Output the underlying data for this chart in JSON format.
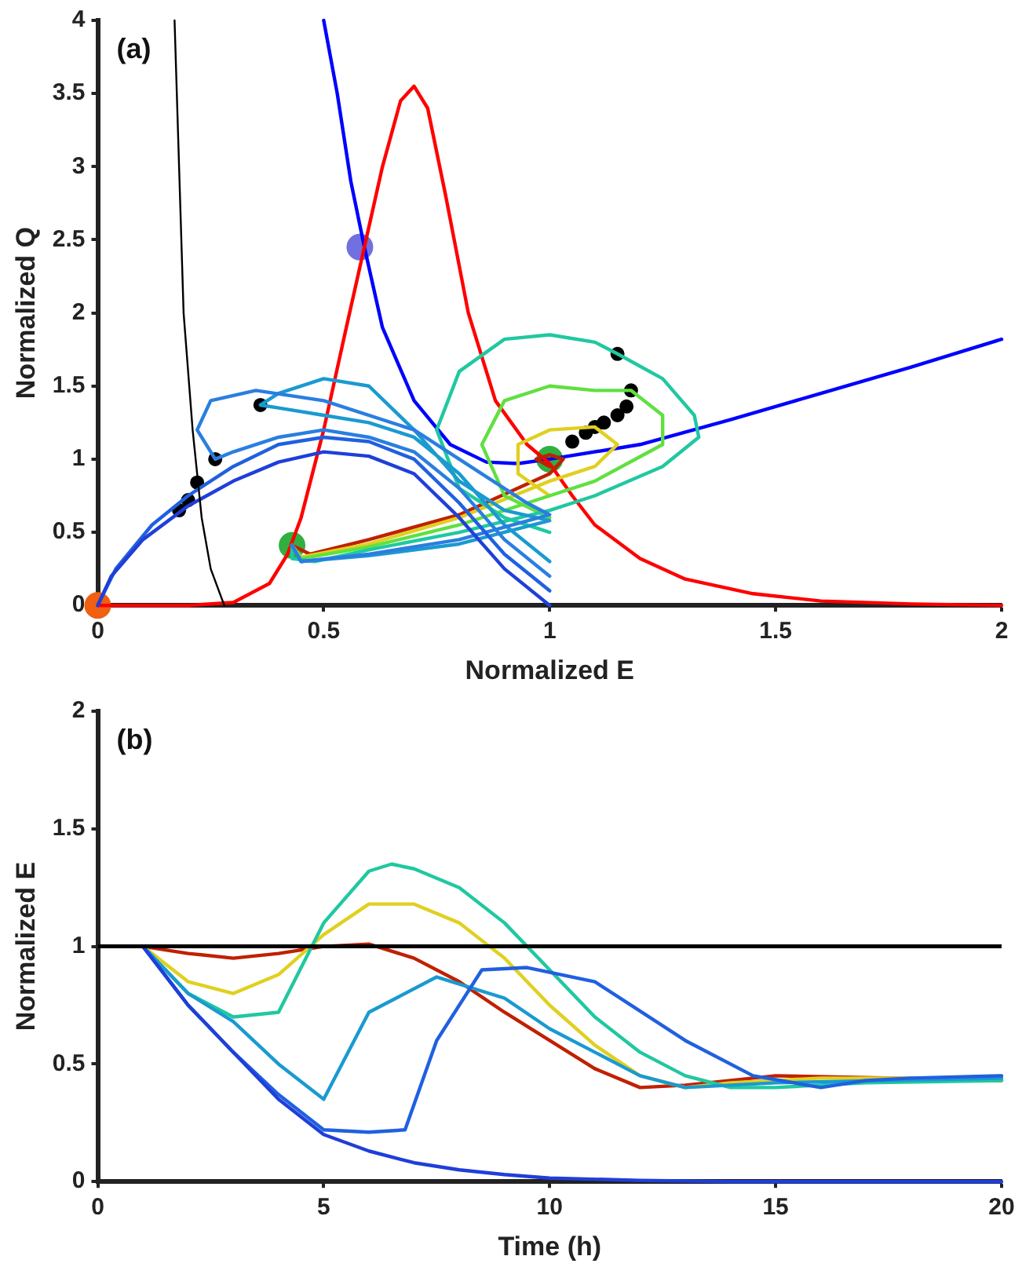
{
  "chart_data": [
    {
      "type": "line",
      "xlabel": "Normalized E",
      "ylabel": "Normalized Q",
      "annotations": [
        "(a)"
      ],
      "xlim": [
        0,
        2
      ],
      "xticks": [
        0,
        0.5,
        1,
        1.5,
        2
      ],
      "ylim": [
        0,
        4
      ],
      "yticks": [
        0,
        0.5,
        1,
        1.5,
        2,
        2.5,
        3,
        3.5,
        4
      ],
      "grid": false,
      "legend": false,
      "marker": "none",
      "line_style": "solid",
      "series": [
        {
          "color": "#000000",
          "x": [
            0.17,
            0.18,
            0.19,
            0.21,
            0.23,
            0.25,
            0.28
          ],
          "values": [
            4,
            3,
            2,
            1.2,
            0.6,
            0.25,
            0
          ]
        },
        {
          "color": "#1f3fd8",
          "x": [
            1,
            0.9,
            0.8,
            0.7,
            0.6,
            0.5,
            0.4,
            0.3,
            0.2,
            0.1,
            0.03,
            0
          ],
          "values": [
            0,
            0.25,
            0.6,
            0.9,
            1.02,
            1.05,
            0.98,
            0.85,
            0.68,
            0.45,
            0.2,
            0
          ]
        },
        {
          "color": "#2060e0",
          "x": [
            1,
            0.9,
            0.8,
            0.7,
            0.6,
            0.5,
            0.4,
            0.3,
            0.2,
            0.12,
            0.04,
            0
          ],
          "values": [
            0.1,
            0.35,
            0.7,
            1,
            1.12,
            1.15,
            1.1,
            0.95,
            0.75,
            0.55,
            0.25,
            0
          ]
        },
        {
          "color": "#2a7ee0",
          "x": [
            1,
            0.9,
            0.8,
            0.7,
            0.6,
            0.5,
            0.4,
            0.3,
            0.26,
            0.22,
            0.25,
            0.35,
            0.5,
            0.7,
            0.85,
            0.95,
            1,
            0.8,
            0.6,
            0.45,
            0.43
          ],
          "values": [
            0.2,
            0.45,
            0.8,
            1.05,
            1.15,
            1.2,
            1.15,
            1.05,
            1,
            1.2,
            1.4,
            1.47,
            1.4,
            1.2,
            0.9,
            0.7,
            0.62,
            0.45,
            0.35,
            0.3,
            0.41
          ]
        },
        {
          "color": "#1a9ad0",
          "x": [
            1,
            0.9,
            0.8,
            0.7,
            0.6,
            0.5,
            0.4,
            0.36,
            0.4,
            0.5,
            0.6,
            0.7,
            0.8,
            0.9,
            1,
            0.8,
            0.6,
            0.45,
            0.43
          ],
          "values": [
            0.3,
            0.55,
            0.9,
            1.15,
            1.25,
            1.3,
            1.35,
            1.37,
            1.45,
            1.55,
            1.5,
            1.2,
            0.85,
            0.65,
            0.58,
            0.42,
            0.34,
            0.3,
            0.41
          ]
        },
        {
          "color": "#20c8a0",
          "x": [
            1,
            0.9,
            0.8,
            0.75,
            0.8,
            0.9,
            1,
            1.1,
            1.15,
            1.25,
            1.32,
            1.33,
            1.25,
            1.1,
            1,
            0.8,
            0.6,
            0.48,
            0.43,
            0.43
          ],
          "values": [
            0.5,
            0.6,
            0.8,
            1.2,
            1.6,
            1.82,
            1.85,
            1.8,
            1.72,
            1.55,
            1.3,
            1.15,
            0.95,
            0.75,
            0.65,
            0.5,
            0.38,
            0.3,
            0.32,
            0.41
          ]
        },
        {
          "color": "#60e040",
          "x": [
            1,
            0.9,
            0.85,
            0.9,
            1,
            1.1,
            1.18,
            1.25,
            1.25,
            1.1,
            1,
            0.8,
            0.6,
            0.45,
            0.43
          ],
          "values": [
            0.6,
            0.75,
            1.1,
            1.4,
            1.5,
            1.47,
            1.47,
            1.3,
            1.1,
            0.85,
            0.75,
            0.55,
            0.4,
            0.32,
            0.41
          ]
        },
        {
          "color": "#e0d020",
          "x": [
            1,
            0.93,
            0.93,
            1,
            1.1,
            1.15,
            1.1,
            1,
            0.8,
            0.6,
            0.45,
            0.43
          ],
          "values": [
            0.75,
            0.9,
            1.1,
            1.2,
            1.22,
            1.1,
            0.95,
            0.85,
            0.6,
            0.42,
            0.33,
            0.41
          ]
        },
        {
          "color": "#c02000",
          "x": [
            1,
            0.97,
            1,
            1.03,
            1,
            0.8,
            0.6,
            0.47,
            0.43
          ],
          "values": [
            0.95,
            1,
            1.03,
            1,
            0.9,
            0.62,
            0.45,
            0.35,
            0.41
          ]
        },
        {
          "color": "#ff0000",
          "x": [
            0,
            0.2,
            0.3,
            0.38,
            0.42,
            0.45,
            0.5,
            0.55,
            0.59,
            0.63,
            0.67,
            0.7,
            0.73,
            0.77,
            0.82,
            0.88,
            0.95,
            1,
            1.05,
            1.1,
            1.2,
            1.3,
            1.45,
            1.6,
            1.8,
            2
          ],
          "values": [
            0,
            0,
            0.02,
            0.15,
            0.35,
            0.6,
            1.2,
            1.9,
            2.45,
            3,
            3.45,
            3.55,
            3.4,
            2.8,
            2,
            1.4,
            1.1,
            0.97,
            0.75,
            0.55,
            0.32,
            0.18,
            0.08,
            0.03,
            0.01,
            0
          ]
        },
        {
          "color": "#0000ff",
          "x": [
            0.5,
            0.53,
            0.56,
            0.59,
            0.63,
            0.7,
            0.78,
            0.86,
            0.93,
            1,
            1.2,
            1.4,
            1.6,
            1.8,
            2
          ],
          "values": [
            4,
            3.5,
            2.9,
            2.45,
            1.9,
            1.4,
            1.1,
            0.98,
            0.97,
            1,
            1.1,
            1.27,
            1.45,
            1.63,
            1.82
          ]
        },
        {
          "type": "scatter",
          "marker": "circle",
          "color": "#000000",
          "x": [
            0.18,
            0.2,
            0.22,
            0.26,
            0.36,
            1.15,
            1.18,
            1.17,
            1.15,
            1.12,
            1.1,
            1.08,
            1.05
          ],
          "values": [
            0.65,
            0.72,
            0.84,
            1,
            1.37,
            1.72,
            1.47,
            1.36,
            1.3,
            1.25,
            1.22,
            1.18,
            1.12
          ]
        },
        {
          "type": "scatter",
          "marker": "circle",
          "colors": [
            "#f06010",
            "#30b040",
            "#30b040",
            "#7070e0"
          ],
          "x": [
            0,
            0.43,
            1,
            0.58
          ],
          "values": [
            0,
            0.41,
            1,
            2.45
          ]
        }
      ]
    },
    {
      "type": "line",
      "xlabel": "Time (h)",
      "ylabel": "Normalized E",
      "annotations": [
        "(b)"
      ],
      "xlim": [
        0,
        20
      ],
      "xticks": [
        0,
        5,
        10,
        15,
        20
      ],
      "ylim": [
        0,
        2
      ],
      "yticks": [
        0,
        0.5,
        1,
        1.5,
        2
      ],
      "grid": false,
      "legend": false,
      "marker": "none",
      "line_style": "solid",
      "ref_lines": [
        {
          "axis": "y",
          "value": 1,
          "color": "#000000"
        }
      ],
      "series": [
        {
          "color": "#1f3fd8",
          "x": [
            1,
            2,
            3,
            4,
            5,
            6,
            7,
            8,
            9,
            10,
            12,
            14,
            20
          ],
          "values": [
            1,
            0.75,
            0.55,
            0.35,
            0.2,
            0.13,
            0.08,
            0.05,
            0.03,
            0.015,
            0.005,
            0,
            0
          ]
        },
        {
          "color": "#2060e0",
          "x": [
            1,
            2,
            3,
            4,
            5,
            6,
            6.8,
            7.5,
            8.5,
            9.5,
            11,
            13,
            14.5,
            16,
            17,
            18,
            20
          ],
          "values": [
            1,
            0.75,
            0.55,
            0.37,
            0.22,
            0.21,
            0.22,
            0.6,
            0.9,
            0.91,
            0.85,
            0.6,
            0.45,
            0.4,
            0.43,
            0.44,
            0.45
          ]
        },
        {
          "color": "#1a9ad0",
          "x": [
            1,
            2,
            3,
            4,
            5,
            6,
            7.5,
            9,
            10,
            12,
            13,
            15,
            20
          ],
          "values": [
            1,
            0.8,
            0.68,
            0.5,
            0.35,
            0.72,
            0.87,
            0.78,
            0.65,
            0.45,
            0.4,
            0.42,
            0.44
          ]
        },
        {
          "color": "#20c8a0",
          "x": [
            1,
            2,
            3,
            4,
            5,
            6,
            6.5,
            7,
            8,
            9,
            10,
            11,
            12,
            13,
            14,
            15,
            17,
            20
          ],
          "values": [
            1,
            0.8,
            0.7,
            0.72,
            1.1,
            1.32,
            1.35,
            1.33,
            1.25,
            1.1,
            0.9,
            0.7,
            0.55,
            0.45,
            0.4,
            0.4,
            0.42,
            0.43
          ]
        },
        {
          "color": "#e0d020",
          "x": [
            1,
            2,
            3,
            4,
            5,
            6,
            7,
            8,
            9,
            10,
            11,
            12,
            13,
            14,
            16,
            20
          ],
          "values": [
            1,
            0.85,
            0.8,
            0.88,
            1.05,
            1.18,
            1.18,
            1.1,
            0.95,
            0.75,
            0.58,
            0.45,
            0.4,
            0.42,
            0.44,
            0.44
          ]
        },
        {
          "color": "#c02000",
          "x": [
            1,
            2,
            3,
            4,
            5,
            6,
            7,
            8,
            9,
            10,
            11,
            12,
            13,
            15,
            20
          ],
          "values": [
            1,
            0.97,
            0.95,
            0.97,
            1,
            1.01,
            0.95,
            0.85,
            0.72,
            0.6,
            0.48,
            0.4,
            0.41,
            0.45,
            0.43
          ]
        }
      ]
    }
  ]
}
